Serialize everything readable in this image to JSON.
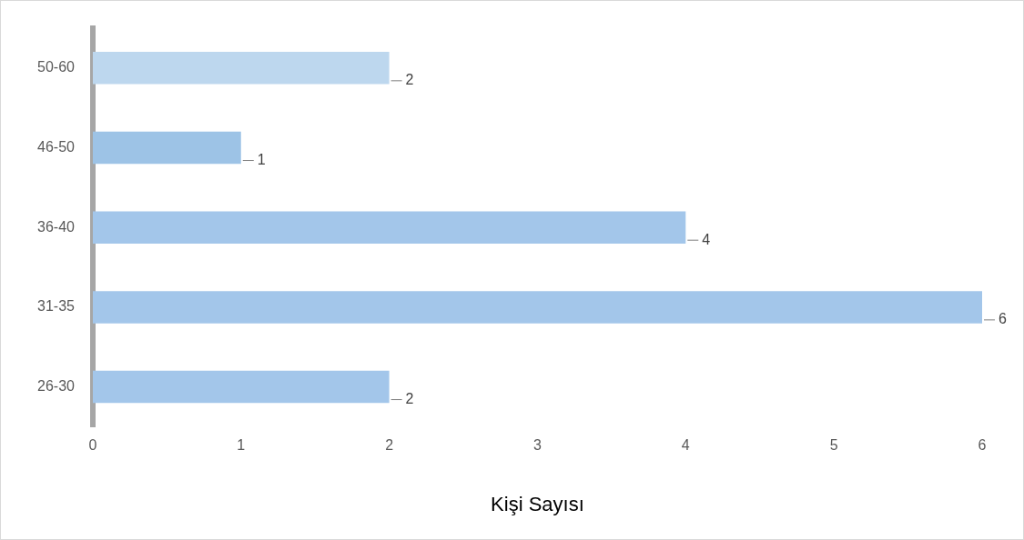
{
  "chart_data": {
    "type": "bar",
    "orientation": "horizontal",
    "xlabel": "Kişi Sayısı",
    "categories": [
      "50-60",
      "46-50",
      "36-40",
      "31-35",
      "26-30"
    ],
    "values": [
      2,
      1,
      4,
      6,
      2
    ],
    "colors": [
      "#bdd7ee",
      "#9dc3e6",
      "#a3c6ea",
      "#a3c6ea",
      "#a3c6ea"
    ],
    "xlim": [
      0,
      6
    ],
    "xticks": [
      0,
      1,
      2,
      3,
      4,
      5,
      6
    ],
    "grid": false,
    "legend": false,
    "data_labels": true
  }
}
